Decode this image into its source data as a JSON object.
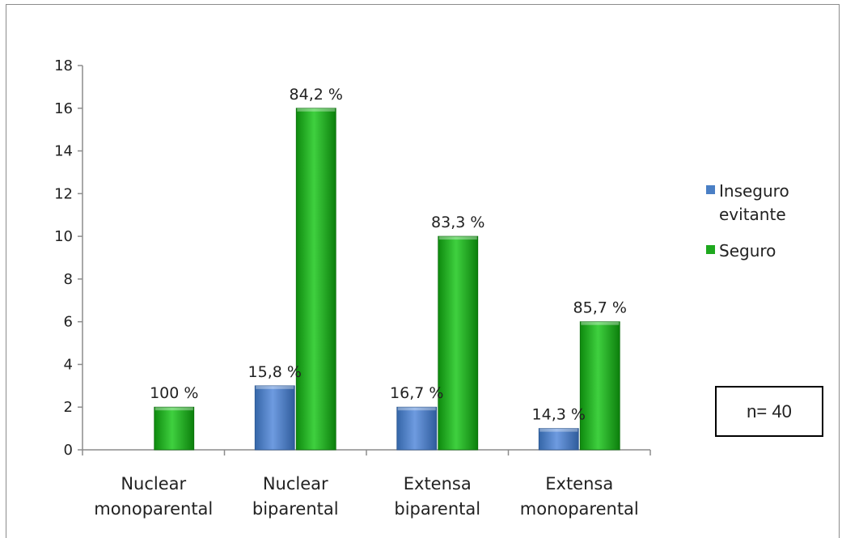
{
  "chart_data": {
    "type": "bar",
    "categories": [
      [
        "Nuclear",
        "monoparental"
      ],
      [
        "Nuclear",
        "biparental"
      ],
      [
        "Extensa",
        "biparental"
      ],
      [
        "Extensa",
        "monoparental"
      ]
    ],
    "series": [
      {
        "name": "Inseguro evitante",
        "legend_lines": [
          "Inseguro",
          "evitante"
        ],
        "color": "#4a7fc5",
        "values": [
          0,
          3,
          2,
          1
        ],
        "labels": [
          "",
          "15,8 %",
          "16,7 %",
          "14,3 %"
        ]
      },
      {
        "name": "Seguro",
        "legend_lines": [
          "Seguro"
        ],
        "color": "#1ea81e",
        "values": [
          2,
          16,
          10,
          6
        ],
        "labels": [
          "100 %",
          "84,2 %",
          "83,3 %",
          "85,7 %"
        ]
      }
    ],
    "yticks": [
      "0",
      "2",
      "4",
      "6",
      "8",
      "10",
      "12",
      "14",
      "16",
      "18"
    ],
    "ylim": [
      0,
      18
    ],
    "grid": false,
    "legend_position": "right"
  },
  "annotation": {
    "text": "n= 40"
  }
}
